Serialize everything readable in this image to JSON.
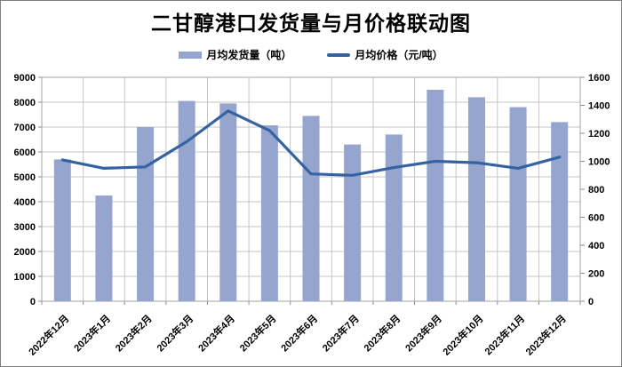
{
  "title": "二甘醇港口发货量与月价格联动图",
  "legend": [
    {
      "label": "月均发货量（吨）",
      "type": "bar"
    },
    {
      "label": "月均价格（元/吨）",
      "type": "line"
    }
  ],
  "colors": {
    "bar_fill": "#95A5CE",
    "line_stroke": "#3563A2",
    "gridline": "#C5C5C5",
    "plot_border": "#A3A3A3",
    "tick": "#8C8C8C",
    "text": "#000000",
    "frame_border": "#808080"
  },
  "chart_data": {
    "type": "bar",
    "combo": "bar+line",
    "title": "二甘醇港口发货量与月价格联动图",
    "categories": [
      "2022年12月",
      "2023年1月",
      "2023年2月",
      "2023年3月",
      "2023年4月",
      "2023年5月",
      "2023年6月",
      "2023年7月",
      "2023年8月",
      "2023年9月",
      "2023年10月",
      "2023年11月",
      "2023年12月"
    ],
    "series": [
      {
        "name": "月均发货量（吨）",
        "type": "bar",
        "axis": "left",
        "values": [
          5700,
          4250,
          7000,
          8050,
          7950,
          7070,
          7450,
          6300,
          6700,
          8500,
          8200,
          7800,
          7200
        ]
      },
      {
        "name": "月均价格（元/吨）",
        "type": "line",
        "axis": "right",
        "values": [
          1010,
          950,
          960,
          1140,
          1360,
          1220,
          910,
          900,
          955,
          1000,
          990,
          950,
          1030
        ]
      }
    ],
    "left_axis": {
      "min": 0,
      "max": 9000,
      "step": 1000
    },
    "right_axis": {
      "min": 0,
      "max": 1600,
      "step": 200
    },
    "grid": {
      "horizontal": true,
      "vertical": true
    },
    "legend_position": "top"
  }
}
